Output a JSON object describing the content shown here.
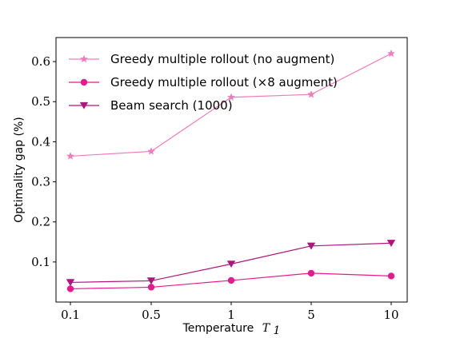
{
  "chart_data": {
    "type": "line",
    "categories": [
      "0.1",
      "0.5",
      "1",
      "5",
      "10"
    ],
    "xlabel": "Temperature",
    "xlabel_symbol": "T",
    "xlabel_subscript": "1",
    "ylabel": "Optimality gap (%)",
    "ylim": [
      0.0,
      0.66
    ],
    "yticks": [
      0.1,
      0.2,
      0.3,
      0.4,
      0.5,
      0.6
    ],
    "ytick_labels": [
      "0.1",
      "0.2",
      "0.3",
      "0.4",
      "0.5",
      "0.6"
    ],
    "grid": false,
    "legend_position": "upper-left",
    "series": [
      {
        "name": "Greedy multiple rollout (no augment)",
        "marker": "star",
        "color": "#F07CC0",
        "values": [
          0.364,
          0.376,
          0.511,
          0.518,
          0.62
        ]
      },
      {
        "name": "Greedy multiple rollout (×8 augment)",
        "marker": "circle",
        "color": "#E8198F",
        "values": [
          0.033,
          0.037,
          0.054,
          0.072,
          0.065
        ]
      },
      {
        "name": "Beam search (1000)",
        "marker": "triangle-down",
        "color": "#B0157E",
        "values": [
          0.049,
          0.053,
          0.095,
          0.14,
          0.147
        ]
      }
    ]
  }
}
